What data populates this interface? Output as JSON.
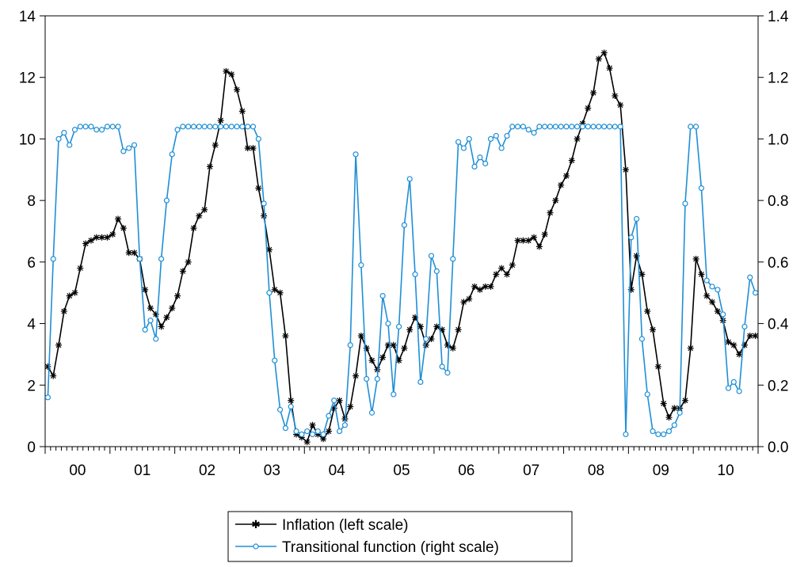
{
  "chart_data": {
    "type": "line",
    "title": "",
    "x_tick_labels": [
      "00",
      "01",
      "02",
      "03",
      "04",
      "05",
      "06",
      "07",
      "08",
      "09",
      "10"
    ],
    "y_left": {
      "lim": [
        0,
        14
      ],
      "ticks": [
        "0",
        "2",
        "4",
        "6",
        "8",
        "10",
        "12",
        "14"
      ]
    },
    "y_right": {
      "lim": [
        0,
        1.4
      ],
      "ticks": [
        "0.0",
        "0.2",
        "0.4",
        "0.6",
        "0.8",
        "1.0",
        "1.2",
        "1.4"
      ]
    },
    "grid": false,
    "legend_position": "bottom-center",
    "series": [
      {
        "name": "Inflation (left scale)",
        "axis": "left",
        "color": "#000000",
        "marker": "asterisk",
        "values": [
          2.6,
          2.3,
          3.3,
          4.4,
          4.9,
          5.0,
          5.8,
          6.6,
          6.7,
          6.8,
          6.8,
          6.8,
          6.9,
          7.4,
          7.1,
          6.3,
          6.3,
          6.1,
          5.1,
          4.5,
          4.3,
          3.9,
          4.2,
          4.5,
          4.9,
          5.7,
          6.0,
          7.1,
          7.5,
          7.7,
          9.1,
          9.8,
          10.6,
          12.2,
          12.1,
          11.6,
          10.9,
          9.7,
          9.7,
          8.4,
          7.5,
          6.4,
          5.1,
          5.0,
          3.6,
          1.5,
          0.4,
          0.3,
          0.15,
          0.7,
          0.4,
          0.25,
          0.5,
          1.25,
          1.5,
          0.9,
          1.3,
          2.3,
          3.6,
          3.2,
          2.8,
          2.5,
          2.9,
          3.3,
          3.3,
          2.8,
          3.2,
          3.8,
          4.2,
          3.9,
          3.3,
          3.5,
          3.9,
          3.8,
          3.3,
          3.2,
          3.8,
          4.7,
          4.8,
          5.2,
          5.1,
          5.2,
          5.2,
          5.6,
          5.8,
          5.6,
          5.9,
          6.7,
          6.7,
          6.7,
          6.8,
          6.5,
          6.9,
          7.6,
          8.0,
          8.5,
          8.8,
          9.3,
          10.0,
          10.5,
          11.0,
          11.5,
          12.6,
          12.8,
          12.3,
          11.4,
          11.1,
          9.0,
          5.1,
          6.2,
          5.6,
          4.4,
          3.8,
          2.6,
          1.4,
          0.95,
          1.25,
          1.25,
          1.5,
          3.2,
          6.1,
          5.6,
          4.9,
          4.7,
          4.4,
          4.1,
          3.4,
          3.3,
          3.0,
          3.3,
          3.6,
          3.6
        ]
      },
      {
        "name": "Transitional function (right scale)",
        "axis": "right",
        "color": "#1f8fd6",
        "marker": "circle",
        "values": [
          0.16,
          0.61,
          1.0,
          1.02,
          0.98,
          1.03,
          1.04,
          1.04,
          1.04,
          1.03,
          1.03,
          1.04,
          1.04,
          1.04,
          0.96,
          0.97,
          0.98,
          0.61,
          0.38,
          0.41,
          0.35,
          0.61,
          0.8,
          0.95,
          1.03,
          1.04,
          1.04,
          1.04,
          1.04,
          1.04,
          1.04,
          1.04,
          1.04,
          1.04,
          1.04,
          1.04,
          1.04,
          1.04,
          1.04,
          1.0,
          0.79,
          0.5,
          0.28,
          0.12,
          0.06,
          0.13,
          0.05,
          0.04,
          0.05,
          0.04,
          0.05,
          0.04,
          0.1,
          0.15,
          0.05,
          0.07,
          0.33,
          0.95,
          0.59,
          0.22,
          0.11,
          0.22,
          0.49,
          0.4,
          0.17,
          0.39,
          0.72,
          0.87,
          0.56,
          0.21,
          0.35,
          0.62,
          0.57,
          0.26,
          0.24,
          0.61,
          0.99,
          0.97,
          1.0,
          0.91,
          0.94,
          0.92,
          1.0,
          1.01,
          0.97,
          1.01,
          1.04,
          1.04,
          1.04,
          1.03,
          1.02,
          1.04,
          1.04,
          1.04,
          1.04,
          1.04,
          1.04,
          1.04,
          1.04,
          1.04,
          1.04,
          1.04,
          1.04,
          1.04,
          1.04,
          1.04,
          1.04,
          0.04,
          0.68,
          0.74,
          0.35,
          0.17,
          0.05,
          0.04,
          0.04,
          0.05,
          0.07,
          0.11,
          0.79,
          1.04,
          1.04,
          0.84,
          0.54,
          0.52,
          0.51,
          0.43,
          0.19,
          0.21,
          0.18,
          0.39,
          0.55,
          0.5
        ]
      }
    ]
  },
  "legend": {
    "items": [
      "Inflation (left scale)",
      "Transitional function (right scale)"
    ]
  }
}
